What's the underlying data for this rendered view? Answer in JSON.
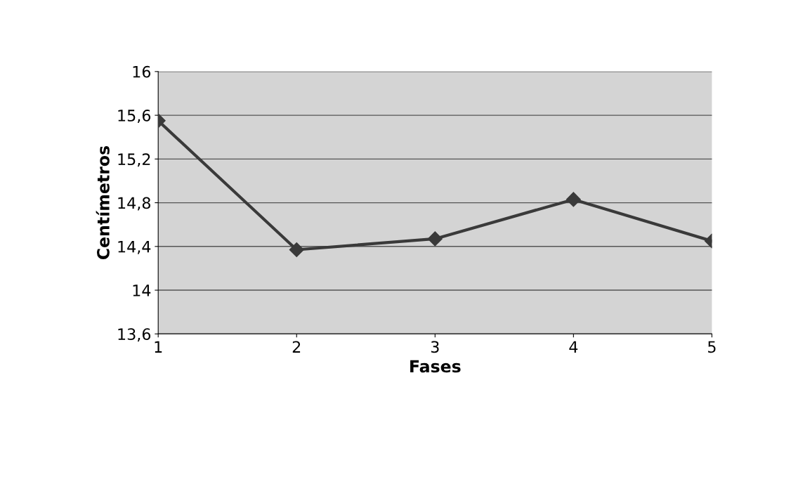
{
  "chart_data": {
    "type": "line",
    "xlabel": "Fases",
    "ylabel": "Centímetros",
    "categories": [
      "1",
      "2",
      "3",
      "4",
      "5"
    ],
    "series": [
      {
        "color": "#3a3a3a",
        "values": [
          15.55,
          14.37,
          14.47,
          14.83,
          14.45
        ]
      }
    ],
    "ylim": [
      13.6,
      16
    ],
    "yticks": [
      {
        "value": 13.6,
        "label": "13,6"
      },
      14,
      {
        "value": 14.4,
        "label": "14,4"
      },
      {
        "value": 14.8,
        "label": "14,8"
      },
      {
        "value": 15.2,
        "label": "15,2"
      },
      {
        "value": 15.6,
        "label": "15,6"
      },
      16
    ],
    "grid": "y",
    "marker": "diamond",
    "line_style": "solid",
    "legend": false
  }
}
